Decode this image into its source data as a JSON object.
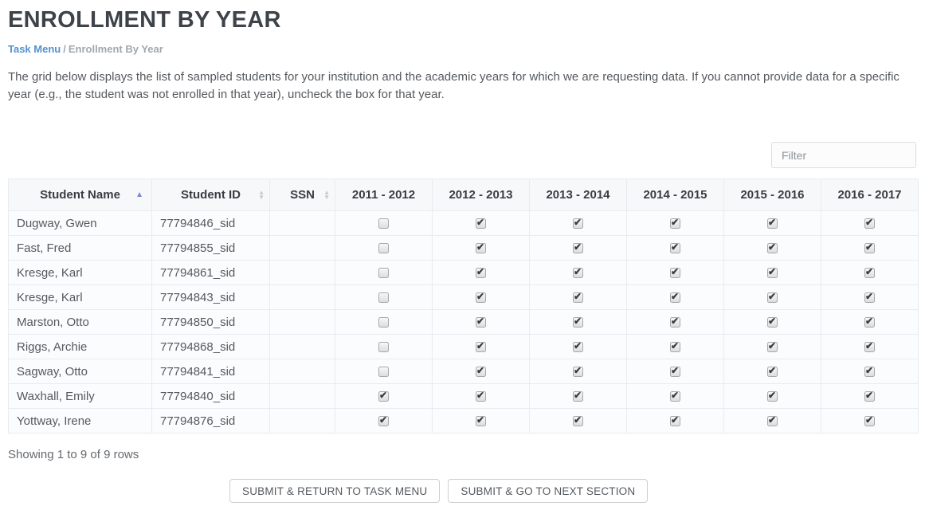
{
  "page": {
    "title": "ENROLLMENT BY YEAR",
    "breadcrumb": {
      "link": "Task Menu",
      "separator": "/",
      "current": "Enrollment By Year"
    },
    "description": "The grid below displays the list of sampled students for your institution and the academic years for which we are requesting data. If you cannot provide data for a specific year (e.g., the student was not enrolled in that year), uncheck the box for that year."
  },
  "toolbar": {
    "filter_placeholder": "Filter"
  },
  "table": {
    "columns": [
      {
        "label": "Student Name",
        "sortable": true,
        "sorted": "asc"
      },
      {
        "label": "Student ID",
        "sortable": true,
        "sorted": "none"
      },
      {
        "label": "SSN",
        "sortable": true,
        "sorted": "none"
      },
      {
        "label": "2011 - 2012",
        "sortable": false
      },
      {
        "label": "2012 - 2013",
        "sortable": false
      },
      {
        "label": "2013 - 2014",
        "sortable": false
      },
      {
        "label": "2014 - 2015",
        "sortable": false
      },
      {
        "label": "2015 - 2016",
        "sortable": false
      },
      {
        "label": "2016 - 2017",
        "sortable": false
      }
    ],
    "rows": [
      {
        "name": "Dugway, Gwen",
        "id": "77794846_sid",
        "ssn": "",
        "years": [
          false,
          true,
          true,
          true,
          true,
          true
        ]
      },
      {
        "name": "Fast, Fred",
        "id": "77794855_sid",
        "ssn": "",
        "years": [
          false,
          true,
          true,
          true,
          true,
          true
        ]
      },
      {
        "name": "Kresge, Karl",
        "id": "77794861_sid",
        "ssn": "",
        "years": [
          false,
          true,
          true,
          true,
          true,
          true
        ]
      },
      {
        "name": "Kresge, Karl",
        "id": "77794843_sid",
        "ssn": "",
        "years": [
          false,
          true,
          true,
          true,
          true,
          true
        ]
      },
      {
        "name": "Marston, Otto",
        "id": "77794850_sid",
        "ssn": "",
        "years": [
          false,
          true,
          true,
          true,
          true,
          true
        ]
      },
      {
        "name": "Riggs, Archie",
        "id": "77794868_sid",
        "ssn": "",
        "years": [
          false,
          true,
          true,
          true,
          true,
          true
        ]
      },
      {
        "name": "Sagway, Otto",
        "id": "77794841_sid",
        "ssn": "",
        "years": [
          false,
          true,
          true,
          true,
          true,
          true
        ]
      },
      {
        "name": "Waxhall, Emily",
        "id": "77794840_sid",
        "ssn": "",
        "years": [
          true,
          true,
          true,
          true,
          true,
          true
        ]
      },
      {
        "name": "Yottway, Irene",
        "id": "77794876_sid",
        "ssn": "",
        "years": [
          true,
          true,
          true,
          true,
          true,
          true
        ]
      }
    ]
  },
  "footer": {
    "showing_text": "Showing 1 to 9 of 9 rows",
    "buttons": [
      {
        "label": "SUBMIT & RETURN TO TASK MENU"
      },
      {
        "label": "SUBMIT & GO TO NEXT SECTION"
      }
    ]
  },
  "icons": {
    "sort_ascending": "up-triangle",
    "sort_inactive": "up-down-carets"
  },
  "colors": {
    "link_blue": "#5492cc",
    "sort_active_arrow": "#7b82d8",
    "sort_inactive_arrow": "#c6c9cc",
    "title_text": "#3d4349",
    "header_bg": "#f7f8f9",
    "row_bg": "#fbfcfd",
    "cell_border": "#e9ebee"
  }
}
